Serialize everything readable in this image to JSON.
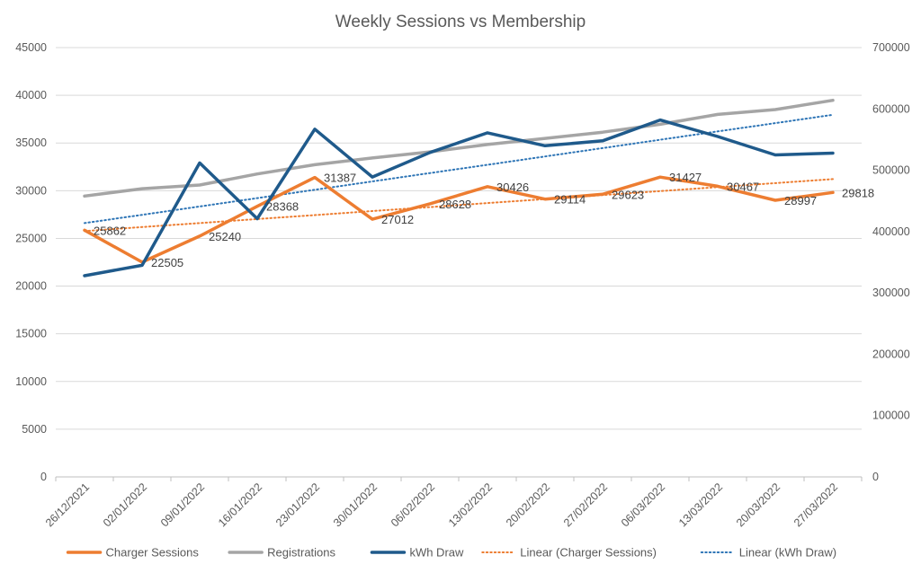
{
  "chart_data": {
    "type": "line",
    "title": "Weekly Sessions vs Membership",
    "categories": [
      "26/12/2021",
      "02/01/2022",
      "09/01/2022",
      "16/01/2022",
      "23/01/2022",
      "30/01/2022",
      "06/02/2022",
      "13/02/2022",
      "20/02/2022",
      "27/02/2022",
      "06/03/2022",
      "13/03/2022",
      "20/03/2022",
      "27/03/2022"
    ],
    "y_left": {
      "min": 0,
      "max": 45000,
      "step": 5000,
      "ticks": [
        "0",
        "5000",
        "10000",
        "15000",
        "20000",
        "25000",
        "30000",
        "35000",
        "40000",
        "45000"
      ]
    },
    "y_right": {
      "min": 0,
      "max": 700000,
      "step": 100000,
      "ticks": [
        "0",
        "100000",
        "200000",
        "300000",
        "400000",
        "500000",
        "600000",
        "700000"
      ]
    },
    "grid": true,
    "legend_position": "bottom",
    "series": [
      {
        "name": "Charger Sessions",
        "axis": "left",
        "color": "#ED7D31",
        "style": "solid",
        "data_labels": true,
        "values": [
          25862,
          22505,
          25240,
          28368,
          31387,
          27012,
          28628,
          30426,
          29114,
          29623,
          31427,
          30467,
          28997,
          29818
        ]
      },
      {
        "name": "Registrations",
        "axis": "right",
        "color": "#A5A5A5",
        "style": "solid",
        "data_labels": false,
        "values": [
          458000,
          470000,
          476000,
          494000,
          509000,
          520000,
          530000,
          542000,
          552000,
          562000,
          575000,
          591000,
          599000,
          614000
        ]
      },
      {
        "name": "kWh Draw",
        "axis": "right",
        "color": "#1F5A8B",
        "style": "solid",
        "data_labels": false,
        "values": [
          328000,
          345000,
          512000,
          421000,
          567000,
          489000,
          529000,
          561000,
          540000,
          548000,
          582000,
          555000,
          525000,
          528000
        ]
      },
      {
        "name": "Linear (Charger Sessions)",
        "axis": "left",
        "color": "#ED7D31",
        "style": "dotted",
        "trend_of": "Charger Sessions"
      },
      {
        "name": "Linear (kWh Draw)",
        "axis": "right",
        "color": "#2E75B6",
        "style": "dotted",
        "trend_of": "kWh Draw"
      }
    ]
  }
}
